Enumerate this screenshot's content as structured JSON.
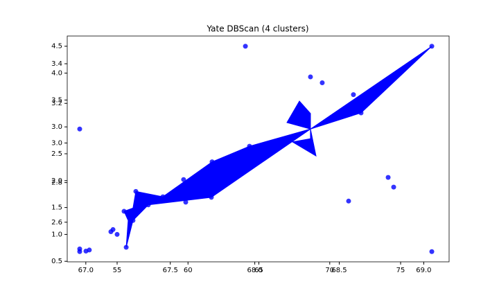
{
  "chart_data": {
    "type": "scatter",
    "title": "Yate DBScan (4 clusters)",
    "color": "#0000ff",
    "x": [
      64.05,
      77.2,
      68.64,
      69.47,
      52.36,
      71.67,
      72.21,
      64.34,
      61.7,
      59.69,
      74.12,
      74.51,
      58.23,
      61.65,
      56.32,
      57.2,
      57.2,
      59.84,
      71.33,
      55.49,
      56.12,
      54.56,
      54.71,
      55.0,
      55.64,
      52.36,
      52.36,
      52.8,
      53.04,
      77.2
    ],
    "y": [
      4.5,
      4.5,
      3.93,
      3.82,
      2.96,
      3.6,
      3.26,
      2.64,
      2.35,
      2.02,
      2.06,
      1.88,
      1.7,
      1.69,
      1.8,
      1.71,
      1.55,
      1.6,
      1.62,
      1.43,
      1.26,
      1.05,
      1.09,
      1.0,
      0.76,
      0.73,
      0.68,
      0.69,
      0.71,
      0.68
    ],
    "polygon": {
      "color": "#0000ff",
      "x": [
        58.23,
        61.7,
        64.34,
        68.64,
        77.2,
        72.21,
        68.64,
        69.03,
        67.37,
        68.64,
        68.64,
        67.86,
        66.98,
        68.64,
        61.65,
        57.2,
        56.12,
        55.64,
        55.78,
        55.49,
        56.12,
        56.32
      ],
      "y": [
        1.7,
        2.35,
        2.64,
        2.96,
        4.5,
        3.26,
        2.96,
        2.46,
        2.72,
        2.78,
        3.25,
        3.48,
        3.08,
        2.96,
        1.69,
        1.55,
        1.26,
        0.76,
        1.26,
        1.43,
        1.49,
        1.8
      ]
    },
    "xlim": [
      51.48,
      78.42
    ],
    "xticks": [
      55,
      60,
      65,
      70,
      75
    ],
    "ylim": [
      0.49,
      4.69
    ],
    "yticks": [
      0.5,
      {
        "value": 1,
        "label": "1.0"
      },
      1.5,
      {
        "value": 2,
        "label": "2.0"
      },
      2.5,
      {
        "value": 3,
        "label": "3.0"
      },
      3.5,
      {
        "value": 4,
        "label": "4.0"
      },
      4.5
    ],
    "x2lim": [
      66.89,
      69.15
    ],
    "x2ticks": [
      {
        "value": 67,
        "label": "67.0"
      },
      67.5,
      {
        "value": 68,
        "label": "68.0"
      },
      68.5,
      {
        "value": 69,
        "label": "69.0"
      }
    ],
    "y2lim": [
      2.4,
      3.54
    ],
    "y2ticks": [
      2.6,
      2.8,
      {
        "value": 3,
        "label": "3.0"
      },
      3.2,
      3.4
    ]
  }
}
